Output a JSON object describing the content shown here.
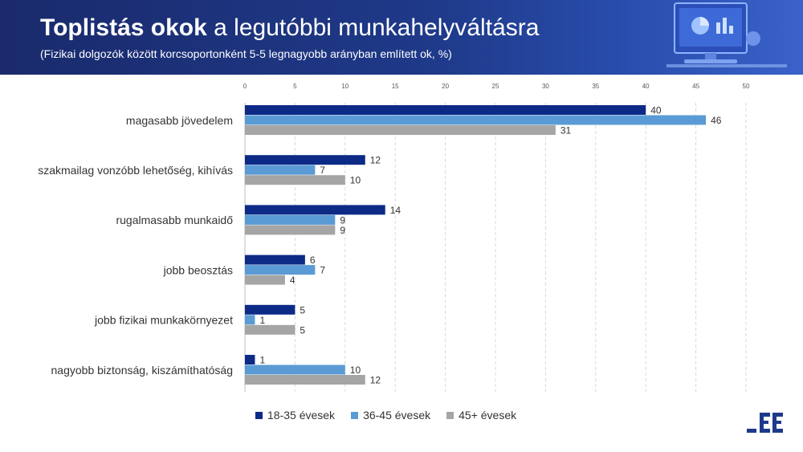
{
  "header": {
    "title_bold": "Toplistás okok",
    "title_rest": " a legutóbbi munkahelyváltásra",
    "subtitle": "(Fizikai dolgozók között korcsoportonként 5-5 legnagyobb arányban említett ok, %)"
  },
  "decor": {
    "icon": "desktop-computer-chart-icon"
  },
  "logo": {
    "icon": "ee-logo-icon",
    "color": "#1f3a8a"
  },
  "colors": {
    "header_bg": "#1f3a8a"
  },
  "chart_data": {
    "type": "bar",
    "orientation": "horizontal",
    "categories": [
      "magasabb jövedelem",
      "szakmailag vonzóbb lehetőség, kihívás",
      "rugalmasabb munkaidő",
      "jobb beosztás",
      "jobb fizikai munkakörnyezet",
      "nagyobb biztonság, kiszámíthatóság"
    ],
    "series": [
      {
        "name": "18-35 évesek",
        "color": "#0d2a86",
        "values": [
          40,
          12,
          14,
          6,
          5,
          1
        ]
      },
      {
        "name": "36-45 évesek",
        "color": "#5b9bd5",
        "values": [
          46,
          7,
          9,
          7,
          1,
          10
        ]
      },
      {
        "name": "45+ évesek",
        "color": "#a5a5a5",
        "values": [
          31,
          10,
          9,
          4,
          5,
          12
        ]
      }
    ],
    "xlim": [
      0,
      50
    ],
    "ticks": [
      0,
      5,
      10,
      15,
      20,
      25,
      30,
      35,
      40,
      45,
      50
    ],
    "grid": true,
    "legend_position": "bottom"
  }
}
